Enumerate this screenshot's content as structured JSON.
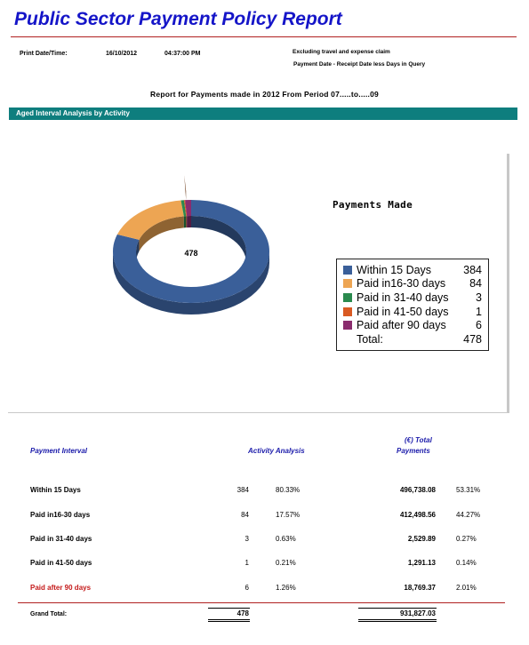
{
  "report": {
    "title": "Public Sector Payment Policy Report",
    "print_label": "Print Date/Time:",
    "print_date": "16/10/2012",
    "print_time": "04:37:00 PM",
    "note1": "Excluding travel and expense claim",
    "note2": "Payment Date - Receipt Date less Days in Query",
    "subtitle": "Report for Payments made in 2012 From Period 07.....to.....09",
    "section_title": "Aged Interval Analysis by Activity"
  },
  "chart_data": {
    "type": "pie",
    "style": "3d-donut",
    "title": "Payments Made",
    "center_label": "478",
    "categories": [
      "Within 15 Days",
      "Paid in16-30 days",
      "Paid in 31-40 days",
      "Paid in 41-50 days",
      "Paid after 90 days"
    ],
    "values": [
      384,
      84,
      3,
      1,
      6
    ],
    "colors": [
      "#3a5f99",
      "#eda553",
      "#2a8a4e",
      "#d95a22",
      "#8a2c6e"
    ],
    "legend_position": "right",
    "total_label": "Total:",
    "total_value": "478"
  },
  "table": {
    "headers": {
      "interval": "Payment Interval",
      "activity": "Activity Analysis",
      "total_line1": "(€) Total",
      "total_line2": "Payments"
    },
    "rows": [
      {
        "label": "Within 15 Days",
        "count": "384",
        "pct": "80.33%",
        "amount": "496,738.08",
        "amount_pct": "53.31%"
      },
      {
        "label": "Paid in16-30 days",
        "count": "84",
        "pct": "17.57%",
        "amount": "412,498.56",
        "amount_pct": "44.27%"
      },
      {
        "label": "Paid in 31-40 days",
        "count": "3",
        "pct": "0.63%",
        "amount": "2,529.89",
        "amount_pct": "0.27%"
      },
      {
        "label": "Paid in 41-50 days",
        "count": "1",
        "pct": "0.21%",
        "amount": "1,291.13",
        "amount_pct": "0.14%"
      },
      {
        "label": "Paid after 90 days",
        "count": "6",
        "pct": "1.26%",
        "amount": "18,769.37",
        "amount_pct": "2.01%"
      }
    ],
    "grand_total_label": "Grand Total:",
    "grand_total_count": "478",
    "grand_total_amount": "931,827.03",
    "highlight_color": "#c41a1a"
  }
}
